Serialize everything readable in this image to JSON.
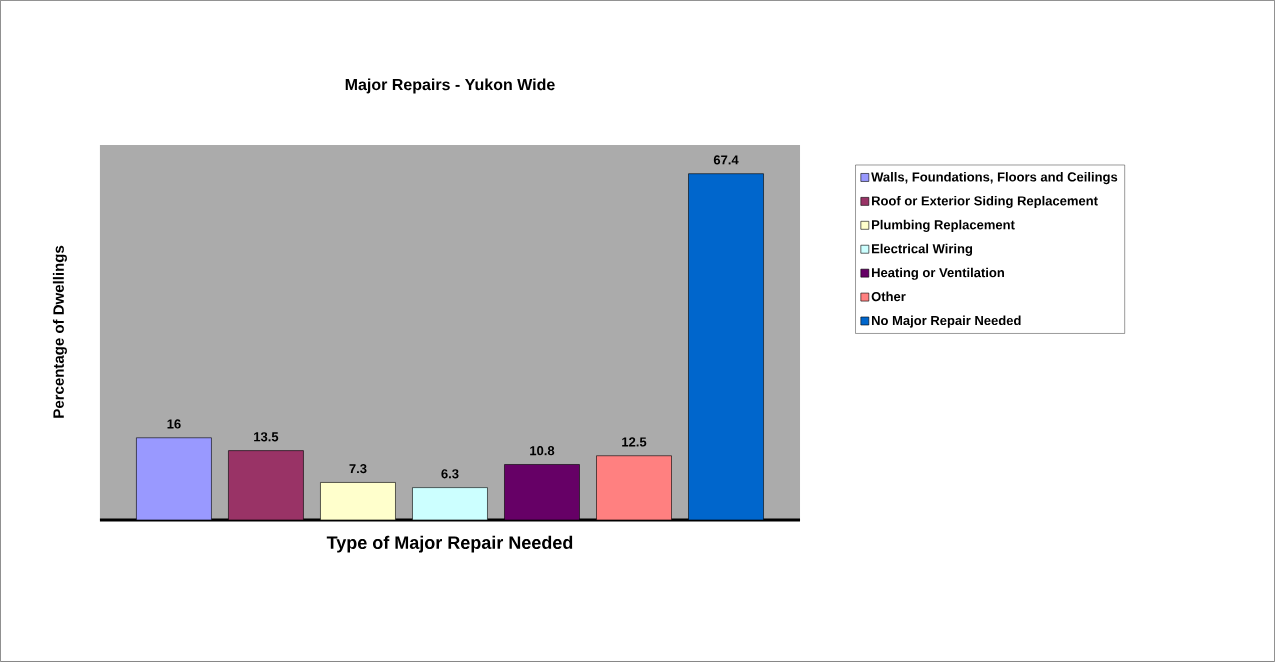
{
  "chart_data": {
    "type": "bar",
    "title": "Major Repairs - Yukon Wide",
    "xlabel": "Type of Major Repair Needed",
    "ylabel": "Percentage of Dwellings",
    "categories": [
      null
    ],
    "series": [
      {
        "name": "Walls, Foundations, Floors and Ceilings",
        "color": "#9999ff",
        "values": [
          16
        ]
      },
      {
        "name": "Roof or Exterior Siding Replacement",
        "color": "#993366",
        "values": [
          13.5
        ]
      },
      {
        "name": "Plumbing Replacement",
        "color": "#ffffcc",
        "values": [
          7.3
        ]
      },
      {
        "name": "Electrical Wiring",
        "color": "#ccffff",
        "values": [
          6.3
        ]
      },
      {
        "name": "Heating or Ventilation",
        "color": "#660066",
        "values": [
          10.8
        ]
      },
      {
        "name": "Other",
        "color": "#ff8080",
        "values": [
          12.5
        ]
      },
      {
        "name": "No Major Repair Needed",
        "color": "#0066cc",
        "values": [
          67.4
        ]
      }
    ],
    "ylim": [
      0,
      73
    ],
    "data_labels": true,
    "legend": "right"
  }
}
